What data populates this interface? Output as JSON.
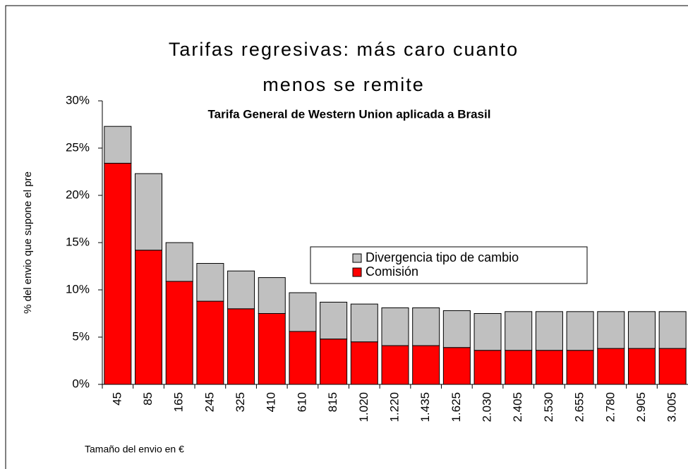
{
  "chart_data": {
    "type": "stacked_bar",
    "title": [
      "Tarifas regresivas: más caro cuanto",
      "menos se remite"
    ],
    "subtitle": "Tarifa General de Western Union aplicada a Brasil",
    "y_label": "% del envio que supone el pre",
    "x_label": "Tamaño del envio en €",
    "categories": [
      "45",
      "85",
      "165",
      "245",
      "325",
      "410",
      "610",
      "815",
      "1.020",
      "1.220",
      "1.435",
      "1.625",
      "2.030",
      "2.405",
      "2.530",
      "2.655",
      "2.780",
      "2.905",
      "3.005"
    ],
    "series": [
      {
        "name": "Comisión",
        "color": "#ff0000",
        "values": [
          23.4,
          14.2,
          10.9,
          8.8,
          8.0,
          7.5,
          5.6,
          4.8,
          4.5,
          4.1,
          4.1,
          3.9,
          3.6,
          3.6,
          3.6,
          3.6,
          3.8,
          3.8,
          3.8
        ]
      },
      {
        "name": "Divergencia tipo de cambio",
        "color": "#c0c0c0",
        "values": [
          3.9,
          8.1,
          4.1,
          4.0,
          4.0,
          3.8,
          4.1,
          3.9,
          4.0,
          4.0,
          4.0,
          3.9,
          3.9,
          4.1,
          4.1,
          4.1,
          3.9,
          3.9,
          3.9
        ]
      }
    ],
    "ylim": [
      0,
      30
    ],
    "yticks": [
      {
        "value": 0,
        "label": "0%"
      },
      {
        "value": 5,
        "label": "5%"
      },
      {
        "value": 10,
        "label": "10%"
      },
      {
        "value": 15,
        "label": "15%"
      },
      {
        "value": 20,
        "label": "20%"
      },
      {
        "value": 25,
        "label": "25%"
      },
      {
        "value": 30,
        "label": "30%"
      }
    ],
    "grid": false
  }
}
